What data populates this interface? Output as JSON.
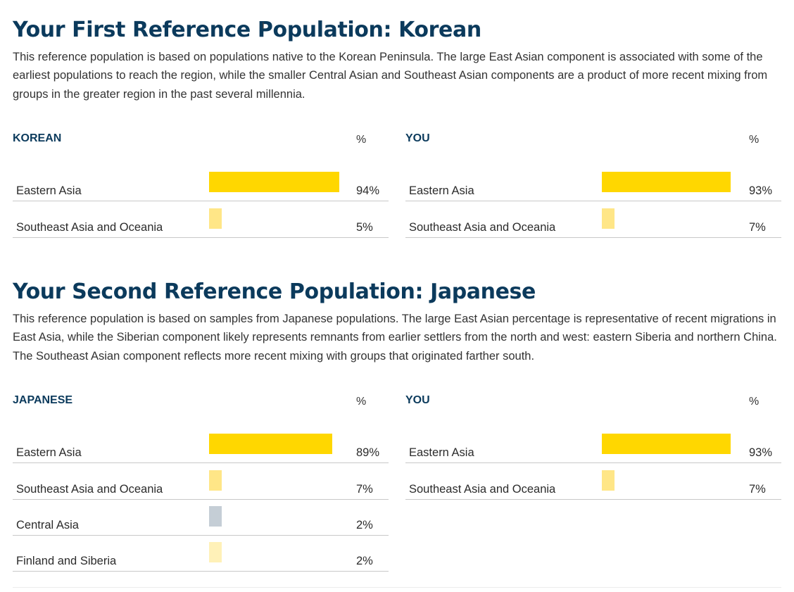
{
  "sections": [
    {
      "title": "Your First Reference Population: Korean",
      "description": "This reference population is based on populations native to the Korean Peninsula. The large East Asian component is associated with some of the earliest populations to reach the region, while the smaller Central Asian and Southeast Asian components are a product of more recent mixing from groups in the greater region in the past several millennia.",
      "tables": [
        {
          "title": "KOREAN",
          "pct_header": "%",
          "rows": [
            {
              "label": "Eastern Asia",
              "value": "94%",
              "fraction": 0.94,
              "color": "#FFD700"
            },
            {
              "label": "Southeast Asia and Oceania",
              "value": "5%",
              "fraction": 0.05,
              "color": "#FFE687"
            }
          ]
        },
        {
          "title": "YOU",
          "pct_header": "%",
          "rows": [
            {
              "label": "Eastern Asia",
              "value": "93%",
              "fraction": 0.93,
              "color": "#FFD700"
            },
            {
              "label": "Southeast Asia and Oceania",
              "value": "7%",
              "fraction": 0.07,
              "color": "#FFE687"
            }
          ]
        }
      ]
    },
    {
      "title": "Your Second Reference Population: Japanese",
      "description": "This reference population is based on samples from Japanese populations. The large East Asian percentage is representative of recent migrations in East Asia, while the Siberian component likely represents remnants from earlier settlers from the north and west: eastern Siberia and northern China. The Southeast Asian component reflects more recent mixing with groups that originated farther south.",
      "tables": [
        {
          "title": "JAPANESE",
          "pct_header": "%",
          "rows": [
            {
              "label": "Eastern Asia",
              "value": "89%",
              "fraction": 0.89,
              "color": "#FFD700"
            },
            {
              "label": "Southeast Asia and Oceania",
              "value": "7%",
              "fraction": 0.07,
              "color": "#FFE687"
            },
            {
              "label": "Central Asia",
              "value": "2%",
              "fraction": 0.02,
              "color": "#C5CED6"
            },
            {
              "label": "Finland and Siberia",
              "value": "2%",
              "fraction": 0.02,
              "color": "#FFF1B8"
            }
          ]
        },
        {
          "title": "YOU",
          "pct_header": "%",
          "rows": [
            {
              "label": "Eastern Asia",
              "value": "93%",
              "fraction": 0.93,
              "color": "#FFD700"
            },
            {
              "label": "Southeast Asia and Oceania",
              "value": "7%",
              "fraction": 0.07,
              "color": "#FFE687"
            }
          ]
        }
      ]
    }
  ]
}
